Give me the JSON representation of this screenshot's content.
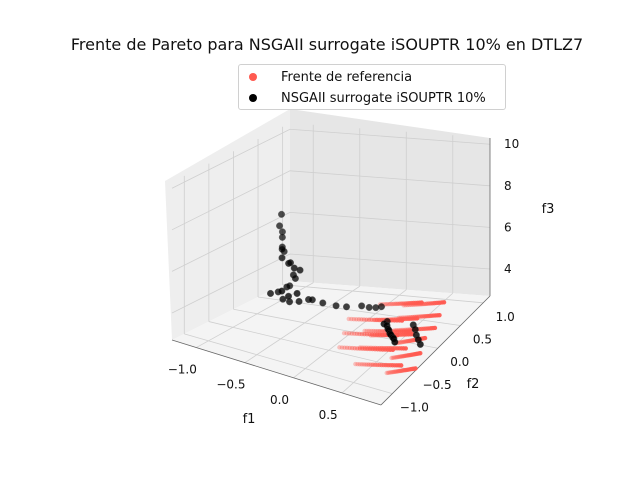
{
  "colors": {
    "reference": "#ff5a50",
    "nsga": "#000000",
    "pane_left": "#eeeeee",
    "pane_right": "#e6e6e6",
    "pane_floor": "#f4f4f4",
    "grid": "#cfcfcf"
  },
  "chart_data": {
    "type": "scatter",
    "projection": "3d",
    "title": "Frente de Pareto para NSGAII surrogate iSOUPTR 10% en DTLZ7",
    "xlabel": "f1",
    "ylabel": "f2",
    "zlabel": "f3",
    "x_ticks": [
      "−1.0",
      "−0.5",
      "0.0",
      "0.5"
    ],
    "y_ticks": [
      "−1.0",
      "−0.5",
      "0.0",
      "0.5",
      "1.0"
    ],
    "z_ticks": [
      "4",
      "6",
      "8",
      "10"
    ],
    "xlim": [
      -1.25,
      0.9
    ],
    "ylim": [
      -1.25,
      1.15
    ],
    "zlim": [
      2.7,
      10.3
    ],
    "grid": true,
    "legend_position": "top",
    "legend": [
      "Frente de referencia",
      "NSGAII surrogate iSOUPTR 10%"
    ],
    "series": [
      {
        "name": "Frente de referencia",
        "color": "#ff5a50",
        "clusters": [
          {
            "x": [
              0.16,
              0.62
            ],
            "y": [
              -0.6,
              -0.2
            ],
            "z": [
              3.2,
              4.2
            ]
          },
          {
            "x": [
              0.4,
              0.74
            ],
            "y": [
              -0.42,
              -0.02
            ],
            "z": [
              3.7,
              4.8
            ]
          },
          {
            "x": [
              0.55,
              0.88
            ],
            "y": [
              -0.22,
              0.18
            ],
            "z": [
              3.7,
              4.5
            ]
          },
          {
            "x": [
              0.48,
              0.86
            ],
            "y": [
              -0.92,
              -0.52
            ],
            "z": [
              3.4,
              4.6
            ]
          },
          {
            "x": [
              0.7,
              0.9
            ],
            "y": [
              -0.7,
              -0.28
            ],
            "z": [
              2.8,
              3.8
            ]
          }
        ]
      },
      {
        "name": "NSGAII surrogate iSOUPTR 10%",
        "color": "#000000",
        "points": [
          [
            -0.98,
            0.42,
            6.4
          ],
          [
            -0.98,
            0.46,
            6.9
          ],
          [
            -0.96,
            0.44,
            6.1
          ],
          [
            -0.94,
            0.4,
            5.9
          ],
          [
            -0.92,
            0.36,
            5.5
          ],
          [
            -0.9,
            0.36,
            5.3
          ],
          [
            -0.86,
            0.24,
            5.6
          ],
          [
            -0.8,
            0.12,
            5.4
          ],
          [
            -0.7,
            0.06,
            5.3
          ],
          [
            -0.64,
            -0.02,
            5.5
          ],
          [
            -0.62,
            0.02,
            5.2
          ],
          [
            -0.6,
            0.1,
            5.0
          ],
          [
            -0.7,
            0.16,
            4.6
          ],
          [
            -0.72,
            0.24,
            4.3
          ],
          [
            -0.76,
            0.14,
            4.0
          ],
          [
            -0.78,
            0.24,
            3.9
          ],
          [
            -0.82,
            0.08,
            3.8
          ],
          [
            -0.86,
            0.0,
            3.8
          ],
          [
            -0.74,
            0.02,
            3.6
          ],
          [
            -0.68,
            0.04,
            3.5
          ],
          [
            -0.58,
            0.04,
            3.6
          ],
          [
            -0.5,
            0.08,
            3.7
          ],
          [
            -0.6,
            -0.14,
            4.1
          ],
          [
            -0.64,
            -0.2,
            4.4
          ],
          [
            -0.54,
            -0.08,
            4.2
          ],
          [
            -0.44,
            0.04,
            3.8
          ],
          [
            -0.34,
            0.06,
            3.7
          ],
          [
            -0.22,
            0.1,
            3.6
          ],
          [
            -0.12,
            0.12,
            3.6
          ],
          [
            0.0,
            0.2,
            3.6
          ],
          [
            0.06,
            0.24,
            3.5
          ],
          [
            0.12,
            0.26,
            3.5
          ],
          [
            0.16,
            0.3,
            3.5
          ],
          [
            0.3,
            0.14,
            3.2
          ],
          [
            0.48,
            -0.3,
            4.1
          ],
          [
            0.52,
            -0.32,
            4.1
          ],
          [
            0.54,
            -0.34,
            4.0
          ],
          [
            0.56,
            -0.36,
            4.0
          ],
          [
            0.58,
            -0.38,
            3.9
          ],
          [
            0.6,
            -0.4,
            3.9
          ],
          [
            0.62,
            -0.4,
            3.8
          ],
          [
            0.64,
            -0.42,
            3.8
          ],
          [
            0.66,
            -0.44,
            3.7
          ],
          [
            0.7,
            -0.12,
            3.9
          ],
          [
            0.74,
            -0.16,
            3.8
          ],
          [
            0.78,
            -0.22,
            3.7
          ],
          [
            0.82,
            -0.26,
            3.6
          ],
          [
            0.86,
            -0.3,
            3.5
          ]
        ]
      }
    ]
  }
}
